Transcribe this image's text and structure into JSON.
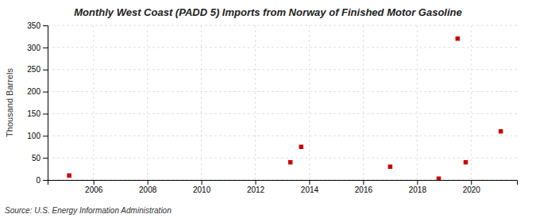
{
  "chart_data": {
    "type": "scatter",
    "title": "Monthly West Coast (PADD 5) Imports from Norway of Finished Motor Gasoline",
    "y_label": "Thousand Barrels",
    "annotations": [
      "Source: U.S. Energy Information Administration"
    ],
    "x": [
      2005.1,
      2013.3,
      2013.7,
      2017.0,
      2018.8,
      2019.5,
      2019.8,
      2021.1
    ],
    "values": [
      10,
      40,
      75,
      30,
      3,
      320,
      40,
      110
    ],
    "color": "#cc0000",
    "marker": "square",
    "xlim": [
      2004.3,
      2021.7
    ],
    "ylim": [
      0,
      350
    ],
    "xticks": [
      2006,
      2008,
      2010,
      2012,
      2014,
      2016,
      2018,
      2020
    ],
    "yticks": [
      0,
      50,
      100,
      150,
      200,
      250,
      300,
      350
    ],
    "grid": true
  }
}
